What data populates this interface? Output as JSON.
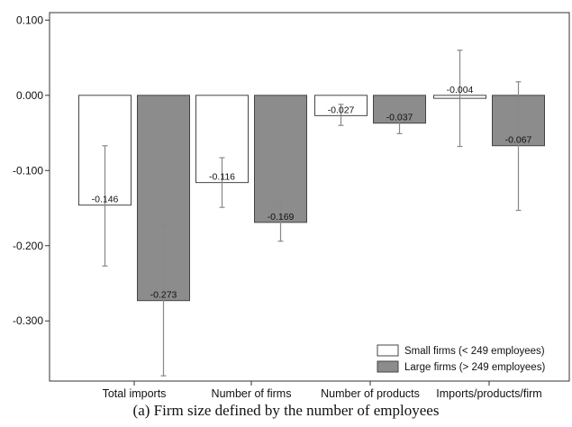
{
  "caption": "(a) Firm size defined by the number of employees",
  "colors": {
    "small": "#ffffff",
    "large": "#8c8c8c",
    "stroke": "#444444",
    "error": "#888888"
  },
  "chart_data": {
    "type": "bar",
    "categories": [
      "Total imports",
      "Number of firms",
      "Number of products",
      "Imports/products/firm"
    ],
    "ylim": [
      -0.38,
      0.11
    ],
    "yticks": [
      0.1,
      0.0,
      -0.1,
      -0.2,
      -0.3
    ],
    "ytick_labels": [
      "0.100",
      "0.000",
      "-0.100",
      "-0.200",
      "-0.300"
    ],
    "legend_position": "bottom-right",
    "series": [
      {
        "name": "Small firms (< 249 employees)",
        "values": [
          -0.146,
          -0.116,
          -0.027,
          -0.004
        ],
        "labels": [
          "-0.146",
          "-0.116",
          "-0.027",
          "-0.004"
        ],
        "ci": [
          [
            -0.227,
            -0.067
          ],
          [
            -0.149,
            -0.083
          ],
          [
            -0.04,
            -0.012
          ],
          [
            -0.068,
            0.06
          ]
        ]
      },
      {
        "name": "Large firms (> 249 employees)",
        "values": [
          -0.273,
          -0.169,
          -0.037,
          -0.067
        ],
        "labels": [
          "-0.273",
          "-0.169",
          "-0.037",
          "-0.067"
        ],
        "ci": [
          [
            -0.373,
            -0.173
          ],
          [
            -0.194,
            -0.144
          ],
          [
            -0.051,
            -0.023
          ],
          [
            -0.153,
            0.018
          ]
        ]
      }
    ]
  }
}
